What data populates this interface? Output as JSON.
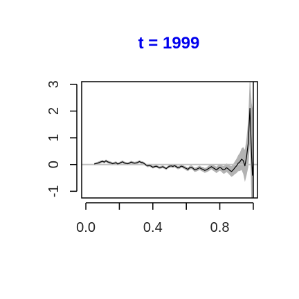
{
  "chart_data": {
    "type": "line",
    "title": "t = 1999",
    "title_color": "#0000ee",
    "xlabel": "",
    "ylabel": "",
    "xlim": [
      -0.025,
      1.025
    ],
    "ylim": [
      -1.25,
      3.1
    ],
    "x_ticks": [
      0.0,
      0.2,
      0.4,
      0.6,
      0.8,
      1.0
    ],
    "x_tick_labels": [
      "0.0",
      "",
      "0.4",
      "",
      "0.8",
      ""
    ],
    "y_ticks": [
      -1,
      0,
      1,
      2,
      3
    ],
    "y_tick_labels": [
      "-1",
      "0",
      "1",
      "2",
      "3"
    ],
    "reference_hline_y": 0,
    "reference_vline_x": 1.0,
    "colors": {
      "estimate": "#000000",
      "band": "#b3b3b3",
      "reference": "#c0c0c0",
      "axis": "#000000"
    },
    "series": [
      {
        "role": "estimate",
        "x": [
          0.05,
          0.07,
          0.09,
          0.1,
          0.11,
          0.12,
          0.13,
          0.14,
          0.15,
          0.16,
          0.17,
          0.18,
          0.19,
          0.2,
          0.21,
          0.22,
          0.23,
          0.24,
          0.25,
          0.26,
          0.27,
          0.28,
          0.29,
          0.3,
          0.31,
          0.32,
          0.33,
          0.34,
          0.35,
          0.36,
          0.37,
          0.38,
          0.39,
          0.4,
          0.41,
          0.42,
          0.43,
          0.44,
          0.45,
          0.46,
          0.47,
          0.48,
          0.49,
          0.5,
          0.51,
          0.52,
          0.53,
          0.54,
          0.55,
          0.56,
          0.57,
          0.58,
          0.59,
          0.6,
          0.61,
          0.62,
          0.63,
          0.64,
          0.65,
          0.66,
          0.67,
          0.68,
          0.69,
          0.7,
          0.71,
          0.72,
          0.73,
          0.74,
          0.75,
          0.76,
          0.77,
          0.78,
          0.79,
          0.8,
          0.81,
          0.82,
          0.83,
          0.84,
          0.85,
          0.86,
          0.87,
          0.88,
          0.89,
          0.9,
          0.91,
          0.92,
          0.93,
          0.94,
          0.95,
          0.96,
          0.97,
          0.98,
          0.985,
          0.99,
          0.995,
          1.0
        ],
        "y": [
          0.02,
          0.05,
          0.1,
          0.12,
          0.09,
          0.14,
          0.1,
          0.08,
          0.06,
          0.03,
          0.05,
          0.07,
          0.02,
          0.04,
          0.08,
          0.1,
          0.06,
          0.04,
          0.03,
          0.05,
          0.09,
          0.07,
          0.05,
          0.06,
          0.08,
          0.11,
          0.08,
          0.07,
          0.03,
          -0.02,
          -0.05,
          -0.03,
          -0.06,
          -0.1,
          -0.08,
          -0.06,
          -0.09,
          -0.12,
          -0.1,
          -0.08,
          -0.12,
          -0.15,
          -0.1,
          -0.06,
          -0.05,
          -0.07,
          -0.04,
          -0.08,
          -0.12,
          -0.1,
          -0.06,
          -0.08,
          -0.12,
          -0.15,
          -0.18,
          -0.12,
          -0.1,
          -0.14,
          -0.2,
          -0.18,
          -0.15,
          -0.12,
          -0.16,
          -0.18,
          -0.22,
          -0.2,
          -0.16,
          -0.12,
          -0.08,
          -0.12,
          -0.16,
          -0.2,
          -0.15,
          -0.1,
          -0.14,
          -0.2,
          -0.18,
          -0.12,
          -0.16,
          -0.22,
          -0.26,
          -0.2,
          -0.12,
          -0.05,
          0.05,
          0.1,
          0.2,
          0.15,
          -0.05,
          0.3,
          0.8,
          2.1,
          1.2,
          0.3,
          -0.4,
          0.1
        ]
      }
    ],
    "band_half_width": [
      0.04,
      0.05,
      0.05,
      0.05,
      0.05,
      0.05,
      0.05,
      0.05,
      0.05,
      0.05,
      0.05,
      0.05,
      0.05,
      0.05,
      0.05,
      0.05,
      0.05,
      0.05,
      0.05,
      0.05,
      0.05,
      0.05,
      0.05,
      0.05,
      0.05,
      0.05,
      0.05,
      0.05,
      0.05,
      0.05,
      0.05,
      0.05,
      0.05,
      0.05,
      0.05,
      0.05,
      0.05,
      0.05,
      0.05,
      0.05,
      0.05,
      0.05,
      0.05,
      0.06,
      0.06,
      0.06,
      0.06,
      0.06,
      0.06,
      0.06,
      0.06,
      0.06,
      0.06,
      0.07,
      0.07,
      0.07,
      0.07,
      0.07,
      0.08,
      0.08,
      0.08,
      0.08,
      0.08,
      0.09,
      0.09,
      0.09,
      0.1,
      0.1,
      0.1,
      0.11,
      0.11,
      0.12,
      0.12,
      0.13,
      0.13,
      0.14,
      0.15,
      0.16,
      0.17,
      0.18,
      0.2,
      0.22,
      0.24,
      0.27,
      0.3,
      0.34,
      0.4,
      0.5,
      0.6,
      0.7,
      0.9,
      1.3,
      1.6,
      2.0,
      2.5,
      3.0
    ]
  }
}
